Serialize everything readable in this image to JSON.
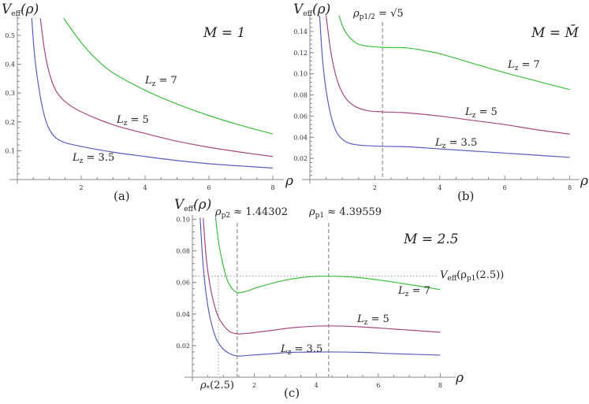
{
  "chart_data": [
    {
      "panel": "a",
      "type": "line",
      "caption": "(a)",
      "parameter": "M = 1",
      "xlabel": "ρ",
      "ylabel": [
        {
          "t": "V"
        },
        {
          "t": "eff",
          "sub": true
        },
        {
          "t": "(ρ)"
        }
      ],
      "xlim": [
        0,
        8
      ],
      "ylim": [
        0,
        0.56
      ],
      "xticks": [
        "2",
        "4",
        "6",
        "8"
      ],
      "yticks": [
        "0.1",
        "0.2",
        "0.3",
        "0.4",
        "0.5"
      ],
      "series": [
        {
          "name": "Lz = 3.5",
          "label": [
            {
              "t": "L"
            },
            {
              "t": "z",
              "sub": true
            },
            {
              "t": " = 3.5",
              "up": true
            }
          ],
          "color": "#5c5cc0",
          "points": [
            [
              0.45,
              0.56
            ],
            [
              0.55,
              0.42
            ],
            [
              0.7,
              0.3
            ],
            [
              0.85,
              0.22
            ],
            [
              1.0,
              0.175
            ],
            [
              1.2,
              0.145
            ],
            [
              1.5,
              0.128
            ],
            [
              2,
              0.115
            ],
            [
              3,
              0.095
            ],
            [
              4,
              0.08
            ],
            [
              5,
              0.066
            ],
            [
              6,
              0.055
            ],
            [
              7,
              0.047
            ],
            [
              8,
              0.04
            ]
          ]
        },
        {
          "name": "Lz = 5",
          "label": [
            {
              "t": "L"
            },
            {
              "t": "z",
              "sub": true
            },
            {
              "t": " = 5",
              "up": true
            }
          ],
          "color": "#a8487e",
          "points": [
            [
              0.72,
              0.56
            ],
            [
              0.85,
              0.45
            ],
            [
              1.0,
              0.37
            ],
            [
              1.2,
              0.31
            ],
            [
              1.5,
              0.27
            ],
            [
              2,
              0.235
            ],
            [
              3,
              0.19
            ],
            [
              4,
              0.16
            ],
            [
              5,
              0.133
            ],
            [
              6,
              0.112
            ],
            [
              7,
              0.095
            ],
            [
              8,
              0.08
            ]
          ]
        },
        {
          "name": "Lz = 7",
          "label": [
            {
              "t": "L"
            },
            {
              "t": "z",
              "sub": true
            },
            {
              "t": " = 7",
              "up": true
            }
          ],
          "color": "#3cbf3c",
          "points": [
            [
              1.45,
              0.56
            ],
            [
              2,
              0.475
            ],
            [
              2.5,
              0.415
            ],
            [
              3,
              0.37
            ],
            [
              4,
              0.31
            ],
            [
              5,
              0.262
            ],
            [
              6,
              0.222
            ],
            [
              7,
              0.188
            ],
            [
              8,
              0.158
            ]
          ]
        }
      ],
      "vlines": [],
      "hlines": []
    },
    {
      "panel": "b",
      "type": "line",
      "caption": "(b)",
      "parameter": "M = M̄",
      "xlabel": "ρ",
      "ylabel": [
        {
          "t": "V"
        },
        {
          "t": "eff",
          "sub": true
        },
        {
          "t": "(ρ)"
        }
      ],
      "xlim": [
        0,
        8
      ],
      "ylim": [
        0,
        0.155
      ],
      "xticks": [
        "2",
        "4",
        "6",
        "8"
      ],
      "yticks": [
        "0.02",
        "0.04",
        "0.06",
        "0.08",
        "0.10",
        "0.12",
        "0.14"
      ],
      "series": [
        {
          "name": "Lz = 3.5",
          "label": [
            {
              "t": "L"
            },
            {
              "t": "z",
              "sub": true
            },
            {
              "t": " = 3.5",
              "up": true
            }
          ],
          "color": "#5c5cc0",
          "points": [
            [
              0.3,
              0.155
            ],
            [
              0.4,
              0.11
            ],
            [
              0.55,
              0.075
            ],
            [
              0.75,
              0.05
            ],
            [
              1.0,
              0.038
            ],
            [
              1.4,
              0.033
            ],
            [
              2.24,
              0.0315
            ],
            [
              3,
              0.031
            ],
            [
              4,
              0.029
            ],
            [
              5,
              0.027
            ],
            [
              6,
              0.025
            ],
            [
              7,
              0.023
            ],
            [
              8,
              0.021
            ]
          ]
        },
        {
          "name": "Lz = 5",
          "label": [
            {
              "t": "L"
            },
            {
              "t": "z",
              "sub": true
            },
            {
              "t": " = 5",
              "up": true
            }
          ],
          "color": "#a8487e",
          "points": [
            [
              0.5,
              0.155
            ],
            [
              0.65,
              0.12
            ],
            [
              0.85,
              0.093
            ],
            [
              1.1,
              0.077
            ],
            [
              1.4,
              0.069
            ],
            [
              1.8,
              0.065
            ],
            [
              2.24,
              0.064
            ],
            [
              3,
              0.063
            ],
            [
              4,
              0.06
            ],
            [
              5,
              0.056
            ],
            [
              6,
              0.052
            ],
            [
              7,
              0.047
            ],
            [
              8,
              0.043
            ]
          ]
        },
        {
          "name": "Lz = 7",
          "label": [
            {
              "t": "L"
            },
            {
              "t": "z",
              "sub": true
            },
            {
              "t": " = 7",
              "up": true
            }
          ],
          "color": "#3cbf3c",
          "points": [
            [
              0.9,
              0.155
            ],
            [
              1.05,
              0.142
            ],
            [
              1.3,
              0.132
            ],
            [
              1.6,
              0.127
            ],
            [
              2.24,
              0.125
            ],
            [
              3,
              0.1245
            ],
            [
              3.5,
              0.122
            ],
            [
              4,
              0.119
            ],
            [
              5,
              0.11
            ],
            [
              6,
              0.101
            ],
            [
              7,
              0.093
            ],
            [
              8,
              0.085
            ]
          ]
        }
      ],
      "vlines": [
        {
          "x": 2.236,
          "style": "dashed",
          "label": [
            {
              "t": "ρ"
            },
            {
              "t": "p1/2",
              "sub": true
            },
            {
              "t": " = √5",
              "up": true
            }
          ]
        }
      ],
      "hlines": []
    },
    {
      "panel": "c",
      "type": "line",
      "caption": "(c)",
      "parameter": "M = 2.5",
      "xlabel": "ρ",
      "ylabel": [
        {
          "t": "V"
        },
        {
          "t": "eff",
          "sub": true
        },
        {
          "t": "(ρ)"
        }
      ],
      "xlim": [
        0,
        8
      ],
      "ylim": [
        0,
        0.101
      ],
      "xticks": [
        "2",
        "4",
        "6",
        "8"
      ],
      "yticks": [
        "0.02",
        "0.04",
        "0.06",
        "0.08",
        "0.10"
      ],
      "series": [
        {
          "name": "Lz = 3.5",
          "label": [
            {
              "t": "L"
            },
            {
              "t": "z",
              "sub": true
            },
            {
              "t": " = 3.5",
              "up": true
            }
          ],
          "color": "#5c5cc0",
          "points": [
            [
              0.25,
              0.101
            ],
            [
              0.35,
              0.07
            ],
            [
              0.5,
              0.045
            ],
            [
              0.7,
              0.028
            ],
            [
              0.9,
              0.02
            ],
            [
              1.15,
              0.0155
            ],
            [
              1.44,
              0.0135
            ],
            [
              1.8,
              0.0138
            ],
            [
              2.5,
              0.0148
            ],
            [
              3.2,
              0.0157
            ],
            [
              4.4,
              0.016
            ],
            [
              5.5,
              0.0157
            ],
            [
              6.5,
              0.0149
            ],
            [
              8,
              0.014
            ]
          ]
        },
        {
          "name": "Lz = 5",
          "label": [
            {
              "t": "L"
            },
            {
              "t": "z",
              "sub": true
            },
            {
              "t": " = 5",
              "up": true
            }
          ],
          "color": "#a8487e",
          "points": [
            [
              0.35,
              0.101
            ],
            [
              0.45,
              0.075
            ],
            [
              0.6,
              0.055
            ],
            [
              0.8,
              0.04
            ],
            [
              1.0,
              0.033
            ],
            [
              1.2,
              0.029
            ],
            [
              1.44,
              0.0275
            ],
            [
              1.8,
              0.0278
            ],
            [
              2.5,
              0.0295
            ],
            [
              3.3,
              0.0315
            ],
            [
              4.4,
              0.0325
            ],
            [
              5.5,
              0.0318
            ],
            [
              6.5,
              0.0305
            ],
            [
              8,
              0.0285
            ]
          ]
        },
        {
          "name": "Lz = 7",
          "label": [
            {
              "t": "L"
            },
            {
              "t": "z",
              "sub": true
            },
            {
              "t": " = 7",
              "up": true
            }
          ],
          "color": "#3cbf3c",
          "points": [
            [
              0.75,
              0.101
            ],
            [
              0.85,
              0.085
            ],
            [
              0.98,
              0.072
            ],
            [
              1.1,
              0.063
            ],
            [
              1.25,
              0.057
            ],
            [
              1.44,
              0.0537
            ],
            [
              1.7,
              0.0542
            ],
            [
              2.2,
              0.0575
            ],
            [
              3,
              0.0615
            ],
            [
              3.7,
              0.0635
            ],
            [
              4.4,
              0.064
            ],
            [
              5.3,
              0.0632
            ],
            [
              6.5,
              0.0602
            ],
            [
              8,
              0.0555
            ]
          ]
        }
      ],
      "vlines": [
        {
          "x": 1.443,
          "style": "dashed",
          "label": [
            {
              "t": "ρ"
            },
            {
              "t": "p2",
              "sub": true
            },
            {
              "t": " ≈ 1.44302",
              "up": true
            }
          ]
        },
        {
          "x": 4.396,
          "style": "dashed",
          "label": [
            {
              "t": "ρ"
            },
            {
              "t": "p1",
              "sub": true
            },
            {
              "t": " ≈ 4.39559",
              "up": true
            }
          ]
        },
        {
          "x": 0.84,
          "style": "dotted",
          "label": [
            {
              "t": "ρ"
            },
            {
              "t": "*",
              "sub": true
            },
            {
              "t": "(2.5)",
              "up": true
            }
          ]
        }
      ],
      "hlines": [
        {
          "y": 0.064,
          "style": "dotted",
          "label": [
            {
              "t": "V"
            },
            {
              "t": "eff",
              "sub": true
            },
            {
              "t": "(ρ",
              "up": true
            },
            {
              "t": "p1",
              "sub": true
            },
            {
              "t": "(2.5))",
              "up": true
            }
          ]
        }
      ]
    }
  ]
}
